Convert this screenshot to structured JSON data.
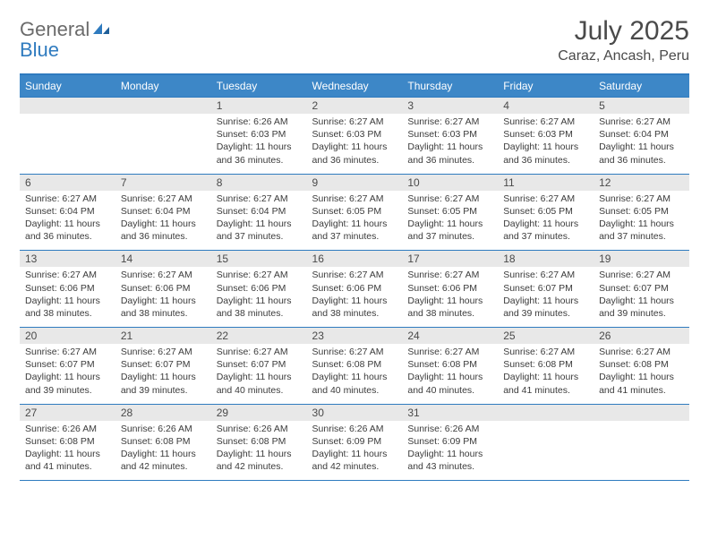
{
  "logo": {
    "word1": "General",
    "word2": "Blue"
  },
  "title": "July 2025",
  "subtitle": "Caraz, Ancash, Peru",
  "colors": {
    "header_bg": "#3d87c7",
    "header_text": "#ffffff",
    "border": "#2f7bbf",
    "daynum_bg": "#e8e8e8",
    "text": "#3b3b3b",
    "logo_gray": "#6b6b6b",
    "logo_blue": "#2f7bbf",
    "page_bg": "#ffffff"
  },
  "typography": {
    "title_fontsize": 30,
    "subtitle_fontsize": 16,
    "dayhead_fontsize": 12,
    "daynum_fontsize": 12,
    "body_fontsize": 10.5
  },
  "day_names": [
    "Sunday",
    "Monday",
    "Tuesday",
    "Wednesday",
    "Thursday",
    "Friday",
    "Saturday"
  ],
  "weeks": [
    [
      {
        "n": "",
        "sr": "",
        "ss": "",
        "dl": ""
      },
      {
        "n": "",
        "sr": "",
        "ss": "",
        "dl": ""
      },
      {
        "n": "1",
        "sr": "Sunrise: 6:26 AM",
        "ss": "Sunset: 6:03 PM",
        "dl": "Daylight: 11 hours and 36 minutes."
      },
      {
        "n": "2",
        "sr": "Sunrise: 6:27 AM",
        "ss": "Sunset: 6:03 PM",
        "dl": "Daylight: 11 hours and 36 minutes."
      },
      {
        "n": "3",
        "sr": "Sunrise: 6:27 AM",
        "ss": "Sunset: 6:03 PM",
        "dl": "Daylight: 11 hours and 36 minutes."
      },
      {
        "n": "4",
        "sr": "Sunrise: 6:27 AM",
        "ss": "Sunset: 6:03 PM",
        "dl": "Daylight: 11 hours and 36 minutes."
      },
      {
        "n": "5",
        "sr": "Sunrise: 6:27 AM",
        "ss": "Sunset: 6:04 PM",
        "dl": "Daylight: 11 hours and 36 minutes."
      }
    ],
    [
      {
        "n": "6",
        "sr": "Sunrise: 6:27 AM",
        "ss": "Sunset: 6:04 PM",
        "dl": "Daylight: 11 hours and 36 minutes."
      },
      {
        "n": "7",
        "sr": "Sunrise: 6:27 AM",
        "ss": "Sunset: 6:04 PM",
        "dl": "Daylight: 11 hours and 36 minutes."
      },
      {
        "n": "8",
        "sr": "Sunrise: 6:27 AM",
        "ss": "Sunset: 6:04 PM",
        "dl": "Daylight: 11 hours and 37 minutes."
      },
      {
        "n": "9",
        "sr": "Sunrise: 6:27 AM",
        "ss": "Sunset: 6:05 PM",
        "dl": "Daylight: 11 hours and 37 minutes."
      },
      {
        "n": "10",
        "sr": "Sunrise: 6:27 AM",
        "ss": "Sunset: 6:05 PM",
        "dl": "Daylight: 11 hours and 37 minutes."
      },
      {
        "n": "11",
        "sr": "Sunrise: 6:27 AM",
        "ss": "Sunset: 6:05 PM",
        "dl": "Daylight: 11 hours and 37 minutes."
      },
      {
        "n": "12",
        "sr": "Sunrise: 6:27 AM",
        "ss": "Sunset: 6:05 PM",
        "dl": "Daylight: 11 hours and 37 minutes."
      }
    ],
    [
      {
        "n": "13",
        "sr": "Sunrise: 6:27 AM",
        "ss": "Sunset: 6:06 PM",
        "dl": "Daylight: 11 hours and 38 minutes."
      },
      {
        "n": "14",
        "sr": "Sunrise: 6:27 AM",
        "ss": "Sunset: 6:06 PM",
        "dl": "Daylight: 11 hours and 38 minutes."
      },
      {
        "n": "15",
        "sr": "Sunrise: 6:27 AM",
        "ss": "Sunset: 6:06 PM",
        "dl": "Daylight: 11 hours and 38 minutes."
      },
      {
        "n": "16",
        "sr": "Sunrise: 6:27 AM",
        "ss": "Sunset: 6:06 PM",
        "dl": "Daylight: 11 hours and 38 minutes."
      },
      {
        "n": "17",
        "sr": "Sunrise: 6:27 AM",
        "ss": "Sunset: 6:06 PM",
        "dl": "Daylight: 11 hours and 38 minutes."
      },
      {
        "n": "18",
        "sr": "Sunrise: 6:27 AM",
        "ss": "Sunset: 6:07 PM",
        "dl": "Daylight: 11 hours and 39 minutes."
      },
      {
        "n": "19",
        "sr": "Sunrise: 6:27 AM",
        "ss": "Sunset: 6:07 PM",
        "dl": "Daylight: 11 hours and 39 minutes."
      }
    ],
    [
      {
        "n": "20",
        "sr": "Sunrise: 6:27 AM",
        "ss": "Sunset: 6:07 PM",
        "dl": "Daylight: 11 hours and 39 minutes."
      },
      {
        "n": "21",
        "sr": "Sunrise: 6:27 AM",
        "ss": "Sunset: 6:07 PM",
        "dl": "Daylight: 11 hours and 39 minutes."
      },
      {
        "n": "22",
        "sr": "Sunrise: 6:27 AM",
        "ss": "Sunset: 6:07 PM",
        "dl": "Daylight: 11 hours and 40 minutes."
      },
      {
        "n": "23",
        "sr": "Sunrise: 6:27 AM",
        "ss": "Sunset: 6:08 PM",
        "dl": "Daylight: 11 hours and 40 minutes."
      },
      {
        "n": "24",
        "sr": "Sunrise: 6:27 AM",
        "ss": "Sunset: 6:08 PM",
        "dl": "Daylight: 11 hours and 40 minutes."
      },
      {
        "n": "25",
        "sr": "Sunrise: 6:27 AM",
        "ss": "Sunset: 6:08 PM",
        "dl": "Daylight: 11 hours and 41 minutes."
      },
      {
        "n": "26",
        "sr": "Sunrise: 6:27 AM",
        "ss": "Sunset: 6:08 PM",
        "dl": "Daylight: 11 hours and 41 minutes."
      }
    ],
    [
      {
        "n": "27",
        "sr": "Sunrise: 6:26 AM",
        "ss": "Sunset: 6:08 PM",
        "dl": "Daylight: 11 hours and 41 minutes."
      },
      {
        "n": "28",
        "sr": "Sunrise: 6:26 AM",
        "ss": "Sunset: 6:08 PM",
        "dl": "Daylight: 11 hours and 42 minutes."
      },
      {
        "n": "29",
        "sr": "Sunrise: 6:26 AM",
        "ss": "Sunset: 6:08 PM",
        "dl": "Daylight: 11 hours and 42 minutes."
      },
      {
        "n": "30",
        "sr": "Sunrise: 6:26 AM",
        "ss": "Sunset: 6:09 PM",
        "dl": "Daylight: 11 hours and 42 minutes."
      },
      {
        "n": "31",
        "sr": "Sunrise: 6:26 AM",
        "ss": "Sunset: 6:09 PM",
        "dl": "Daylight: 11 hours and 43 minutes."
      },
      {
        "n": "",
        "sr": "",
        "ss": "",
        "dl": ""
      },
      {
        "n": "",
        "sr": "",
        "ss": "",
        "dl": ""
      }
    ]
  ]
}
